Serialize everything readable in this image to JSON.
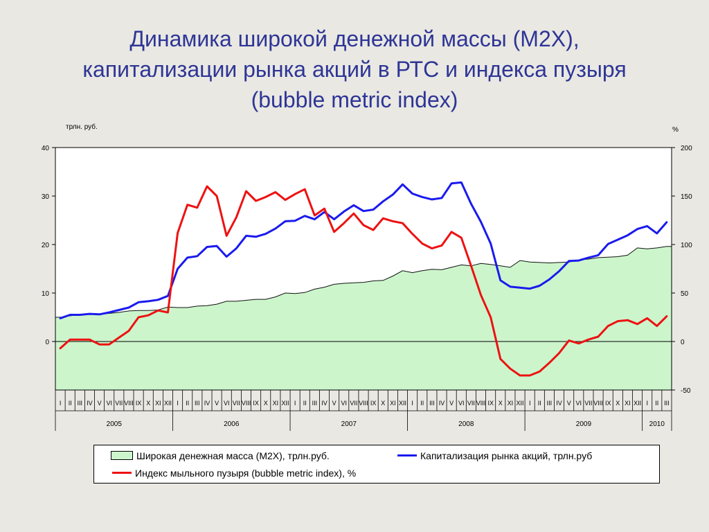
{
  "chart_data": {
    "type": "line",
    "title": "Динамика широкой денежной массы (М2Х), капитализации рынка акций в РТС и индекса пузыря (bubble metric index)",
    "title_lines": [
      "Динамика широкой денежной массы (М2Х),",
      "капитализации рынка акций в РТС и индекса пузыря",
      "(bubble metric index)"
    ],
    "left_axis_label": "трлн. руб.",
    "right_axis_label": "%",
    "left_ylim": [
      -10,
      40
    ],
    "left_ticks": [
      0,
      10,
      20,
      30,
      40
    ],
    "right_ylim": [
      -50,
      200
    ],
    "right_ticks": [
      -50,
      0,
      50,
      100,
      150,
      200
    ],
    "months": [
      "I",
      "II",
      "III",
      "IV",
      "V",
      "VI",
      "VII",
      "VIII",
      "IX",
      "X",
      "XI",
      "XII",
      "I",
      "II",
      "III",
      "IV",
      "V",
      "VI",
      "VII",
      "VIII",
      "IX",
      "X",
      "XI",
      "XII",
      "I",
      "II",
      "III",
      "IV",
      "V",
      "VI",
      "VII",
      "VIII",
      "IX",
      "X",
      "XI",
      "XII",
      "I",
      "II",
      "III",
      "IV",
      "V",
      "VI",
      "VII",
      "VIII",
      "IX",
      "X",
      "XI",
      "XII",
      "I",
      "II",
      "III",
      "IV",
      "V",
      "VI",
      "VII",
      "VIII",
      "IX",
      "X",
      "XI",
      "XII",
      "I",
      "II",
      "III"
    ],
    "years": [
      {
        "label": "2005",
        "months": 12
      },
      {
        "label": "2006",
        "months": 12
      },
      {
        "label": "2007",
        "months": 12
      },
      {
        "label": "2008",
        "months": 12
      },
      {
        "label": "2009",
        "months": 12
      },
      {
        "label": "2010",
        "months": 3
      }
    ],
    "grid": false,
    "legend_position": "bottom",
    "series": [
      {
        "name": "Широкая денежная масса (М2Х), трлн.руб.",
        "kind": "area",
        "axis": "left",
        "color": "#ccf5cc",
        "values": [
          5.0,
          5.3,
          5.5,
          5.6,
          5.6,
          5.8,
          6.0,
          6.3,
          6.4,
          6.4,
          6.5,
          7.1,
          7.0,
          7.0,
          7.3,
          7.4,
          7.7,
          8.3,
          8.3,
          8.5,
          8.7,
          8.7,
          9.2,
          10.0,
          9.9,
          10.1,
          10.8,
          11.2,
          11.8,
          12.0,
          12.1,
          12.2,
          12.5,
          12.6,
          13.5,
          14.6,
          14.2,
          14.6,
          14.9,
          14.8,
          15.3,
          15.8,
          15.6,
          16.1,
          15.9,
          15.6,
          15.3,
          16.7,
          16.4,
          16.3,
          16.2,
          16.3,
          16.4,
          16.8,
          17.0,
          17.3,
          17.4,
          17.5,
          17.8,
          19.3,
          19.1,
          19.3,
          19.6
        ]
      },
      {
        "name": "Капитализация рынка акций, трлн.руб",
        "kind": "line",
        "axis": "left",
        "color": "#1a1aee",
        "values": [
          4.8,
          5.5,
          5.5,
          5.7,
          5.6,
          6.0,
          6.5,
          7.0,
          8.1,
          8.3,
          8.6,
          9.4,
          15.0,
          17.3,
          17.6,
          19.5,
          19.7,
          17.5,
          19.2,
          21.8,
          21.6,
          22.2,
          23.3,
          24.8,
          24.9,
          25.9,
          25.2,
          26.7,
          25.2,
          26.8,
          28.1,
          26.9,
          27.2,
          28.9,
          30.3,
          32.4,
          30.5,
          29.8,
          29.3,
          29.6,
          32.6,
          32.8,
          28.4,
          24.7,
          20.2,
          12.6,
          11.3,
          11.1,
          10.9,
          11.5,
          12.8,
          14.5,
          16.6,
          16.7,
          17.3,
          17.8,
          20.1,
          21.0,
          21.9,
          23.2,
          23.8,
          22.3,
          24.6
        ]
      },
      {
        "name": "Индекс мыльного пузыря (bubble metric index), %",
        "kind": "line",
        "axis": "right",
        "color": "#ee1111",
        "values": [
          -7,
          2,
          2,
          2,
          -3,
          -3,
          4,
          11,
          25,
          27,
          32,
          30,
          112,
          141,
          138,
          160,
          150,
          109,
          128,
          155,
          145,
          149,
          154,
          146,
          152,
          157,
          130,
          137,
          113,
          122,
          132,
          120,
          115,
          127,
          124,
          122,
          111,
          101,
          96,
          99,
          113,
          107,
          78,
          48,
          25,
          -18,
          -28,
          -35,
          -35,
          -31,
          -22,
          -12,
          1,
          -2,
          2,
          5,
          16,
          21,
          22,
          18,
          24,
          16,
          26
        ]
      }
    ]
  }
}
